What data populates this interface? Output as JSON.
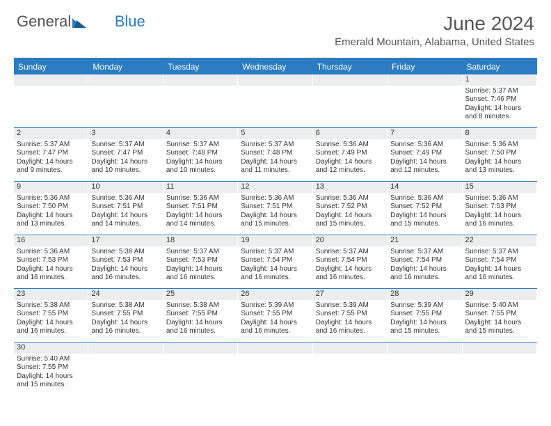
{
  "logo": {
    "text1": "General",
    "text2": "Blue"
  },
  "title": "June 2024",
  "location": "Emerald Mountain, Alabama, United States",
  "colors": {
    "accent": "#2b7cc0",
    "daybar": "#ecedee",
    "text": "#333333"
  },
  "day_labels": [
    "Sunday",
    "Monday",
    "Tuesday",
    "Wednesday",
    "Thursday",
    "Friday",
    "Saturday"
  ],
  "weeks": [
    [
      null,
      null,
      null,
      null,
      null,
      null,
      {
        "n": "1",
        "sr": "Sunrise: 5:37 AM",
        "ss": "Sunset: 7:46 PM",
        "d1": "Daylight: 14 hours",
        "d2": "and 8 minutes."
      }
    ],
    [
      {
        "n": "2",
        "sr": "Sunrise: 5:37 AM",
        "ss": "Sunset: 7:47 PM",
        "d1": "Daylight: 14 hours",
        "d2": "and 9 minutes."
      },
      {
        "n": "3",
        "sr": "Sunrise: 5:37 AM",
        "ss": "Sunset: 7:47 PM",
        "d1": "Daylight: 14 hours",
        "d2": "and 10 minutes."
      },
      {
        "n": "4",
        "sr": "Sunrise: 5:37 AM",
        "ss": "Sunset: 7:48 PM",
        "d1": "Daylight: 14 hours",
        "d2": "and 10 minutes."
      },
      {
        "n": "5",
        "sr": "Sunrise: 5:37 AM",
        "ss": "Sunset: 7:48 PM",
        "d1": "Daylight: 14 hours",
        "d2": "and 11 minutes."
      },
      {
        "n": "6",
        "sr": "Sunrise: 5:36 AM",
        "ss": "Sunset: 7:49 PM",
        "d1": "Daylight: 14 hours",
        "d2": "and 12 minutes."
      },
      {
        "n": "7",
        "sr": "Sunrise: 5:36 AM",
        "ss": "Sunset: 7:49 PM",
        "d1": "Daylight: 14 hours",
        "d2": "and 12 minutes."
      },
      {
        "n": "8",
        "sr": "Sunrise: 5:36 AM",
        "ss": "Sunset: 7:50 PM",
        "d1": "Daylight: 14 hours",
        "d2": "and 13 minutes."
      }
    ],
    [
      {
        "n": "9",
        "sr": "Sunrise: 5:36 AM",
        "ss": "Sunset: 7:50 PM",
        "d1": "Daylight: 14 hours",
        "d2": "and 13 minutes."
      },
      {
        "n": "10",
        "sr": "Sunrise: 5:36 AM",
        "ss": "Sunset: 7:51 PM",
        "d1": "Daylight: 14 hours",
        "d2": "and 14 minutes."
      },
      {
        "n": "11",
        "sr": "Sunrise: 5:36 AM",
        "ss": "Sunset: 7:51 PM",
        "d1": "Daylight: 14 hours",
        "d2": "and 14 minutes."
      },
      {
        "n": "12",
        "sr": "Sunrise: 5:36 AM",
        "ss": "Sunset: 7:51 PM",
        "d1": "Daylight: 14 hours",
        "d2": "and 15 minutes."
      },
      {
        "n": "13",
        "sr": "Sunrise: 5:36 AM",
        "ss": "Sunset: 7:52 PM",
        "d1": "Daylight: 14 hours",
        "d2": "and 15 minutes."
      },
      {
        "n": "14",
        "sr": "Sunrise: 5:36 AM",
        "ss": "Sunset: 7:52 PM",
        "d1": "Daylight: 14 hours",
        "d2": "and 15 minutes."
      },
      {
        "n": "15",
        "sr": "Sunrise: 5:36 AM",
        "ss": "Sunset: 7:53 PM",
        "d1": "Daylight: 14 hours",
        "d2": "and 16 minutes."
      }
    ],
    [
      {
        "n": "16",
        "sr": "Sunrise: 5:36 AM",
        "ss": "Sunset: 7:53 PM",
        "d1": "Daylight: 14 hours",
        "d2": "and 16 minutes."
      },
      {
        "n": "17",
        "sr": "Sunrise: 5:36 AM",
        "ss": "Sunset: 7:53 PM",
        "d1": "Daylight: 14 hours",
        "d2": "and 16 minutes."
      },
      {
        "n": "18",
        "sr": "Sunrise: 5:37 AM",
        "ss": "Sunset: 7:53 PM",
        "d1": "Daylight: 14 hours",
        "d2": "and 16 minutes."
      },
      {
        "n": "19",
        "sr": "Sunrise: 5:37 AM",
        "ss": "Sunset: 7:54 PM",
        "d1": "Daylight: 14 hours",
        "d2": "and 16 minutes."
      },
      {
        "n": "20",
        "sr": "Sunrise: 5:37 AM",
        "ss": "Sunset: 7:54 PM",
        "d1": "Daylight: 14 hours",
        "d2": "and 16 minutes."
      },
      {
        "n": "21",
        "sr": "Sunrise: 5:37 AM",
        "ss": "Sunset: 7:54 PM",
        "d1": "Daylight: 14 hours",
        "d2": "and 16 minutes."
      },
      {
        "n": "22",
        "sr": "Sunrise: 5:37 AM",
        "ss": "Sunset: 7:54 PM",
        "d1": "Daylight: 14 hours",
        "d2": "and 16 minutes."
      }
    ],
    [
      {
        "n": "23",
        "sr": "Sunrise: 5:38 AM",
        "ss": "Sunset: 7:55 PM",
        "d1": "Daylight: 14 hours",
        "d2": "and 16 minutes."
      },
      {
        "n": "24",
        "sr": "Sunrise: 5:38 AM",
        "ss": "Sunset: 7:55 PM",
        "d1": "Daylight: 14 hours",
        "d2": "and 16 minutes."
      },
      {
        "n": "25",
        "sr": "Sunrise: 5:38 AM",
        "ss": "Sunset: 7:55 PM",
        "d1": "Daylight: 14 hours",
        "d2": "and 16 minutes."
      },
      {
        "n": "26",
        "sr": "Sunrise: 5:39 AM",
        "ss": "Sunset: 7:55 PM",
        "d1": "Daylight: 14 hours",
        "d2": "and 16 minutes."
      },
      {
        "n": "27",
        "sr": "Sunrise: 5:39 AM",
        "ss": "Sunset: 7:55 PM",
        "d1": "Daylight: 14 hours",
        "d2": "and 16 minutes."
      },
      {
        "n": "28",
        "sr": "Sunrise: 5:39 AM",
        "ss": "Sunset: 7:55 PM",
        "d1": "Daylight: 14 hours",
        "d2": "and 15 minutes."
      },
      {
        "n": "29",
        "sr": "Sunrise: 5:40 AM",
        "ss": "Sunset: 7:55 PM",
        "d1": "Daylight: 14 hours",
        "d2": "and 15 minutes."
      }
    ],
    [
      {
        "n": "30",
        "sr": "Sunrise: 5:40 AM",
        "ss": "Sunset: 7:55 PM",
        "d1": "Daylight: 14 hours",
        "d2": "and 15 minutes."
      },
      null,
      null,
      null,
      null,
      null,
      null
    ]
  ]
}
